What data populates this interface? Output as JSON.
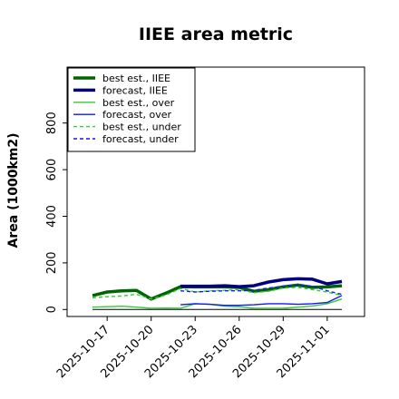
{
  "chart_data": {
    "type": "line",
    "title": "IIEE area metric",
    "xlabel": "",
    "ylabel": "Area (1000km2)",
    "x_ticks": [
      "2025-10-17",
      "2025-10-20",
      "2025-10-23",
      "2025-10-26",
      "2025-10-29",
      "2025-11-01"
    ],
    "x_tick_colors": [
      "#000000",
      "#000000",
      "#228b22",
      "#000000",
      "#000000",
      "#000000"
    ],
    "x_range": [
      "2025-10-16",
      "2025-11-02"
    ],
    "y_ticks": [
      "0",
      "200",
      "400",
      "600",
      "800"
    ],
    "ylim": [
      -30,
      1040
    ],
    "grid": false,
    "legend_position": "upper-left",
    "series": [
      {
        "name": "best est., IIEE",
        "color": "#006400",
        "style": "solid",
        "width": "thick",
        "points": [
          [
            "2025-10-16",
            60
          ],
          [
            "2025-10-17",
            75
          ],
          [
            "2025-10-18",
            80
          ],
          [
            "2025-10-19",
            82
          ],
          [
            "2025-10-20",
            45
          ],
          [
            "2025-10-21",
            70
          ],
          [
            "2025-10-22",
            98
          ],
          [
            "2025-10-23",
            97
          ],
          [
            "2025-10-24",
            97
          ],
          [
            "2025-10-25",
            97
          ],
          [
            "2025-10-26",
            95
          ],
          [
            "2025-10-27",
            78
          ],
          [
            "2025-10-28",
            85
          ],
          [
            "2025-10-29",
            97
          ],
          [
            "2025-10-30",
            105
          ],
          [
            "2025-10-31",
            95
          ],
          [
            "2025-11-01",
            97
          ],
          [
            "2025-11-02",
            102
          ]
        ]
      },
      {
        "name": "forecast, IIEE",
        "color": "#000080",
        "style": "solid",
        "width": "thick",
        "points": [
          [
            "2025-10-22",
            100
          ],
          [
            "2025-10-23",
            100
          ],
          [
            "2025-10-24",
            100
          ],
          [
            "2025-10-25",
            102
          ],
          [
            "2025-10-26",
            98
          ],
          [
            "2025-10-27",
            102
          ],
          [
            "2025-10-28",
            118
          ],
          [
            "2025-10-29",
            128
          ],
          [
            "2025-10-30",
            132
          ],
          [
            "2025-10-31",
            130
          ],
          [
            "2025-11-01",
            110
          ],
          [
            "2025-11-02",
            120
          ]
        ]
      },
      {
        "name": "best est., over",
        "color": "#32cd32",
        "style": "solid",
        "width": "thin",
        "points": [
          [
            "2025-10-16",
            10
          ],
          [
            "2025-10-17",
            12
          ],
          [
            "2025-10-18",
            14
          ],
          [
            "2025-10-19",
            10
          ],
          [
            "2025-10-20",
            5
          ],
          [
            "2025-10-21",
            6
          ],
          [
            "2025-10-22",
            5
          ],
          [
            "2025-10-23",
            25
          ],
          [
            "2025-10-24",
            22
          ],
          [
            "2025-10-25",
            14
          ],
          [
            "2025-10-26",
            12
          ],
          [
            "2025-10-27",
            5
          ],
          [
            "2025-10-28",
            5
          ],
          [
            "2025-10-29",
            5
          ],
          [
            "2025-10-30",
            10
          ],
          [
            "2025-10-31",
            15
          ],
          [
            "2025-11-01",
            25
          ],
          [
            "2025-11-02",
            45
          ]
        ]
      },
      {
        "name": "forecast, over",
        "color": "#1515ff",
        "style": "solid",
        "width": "thin",
        "points": [
          [
            "2025-10-22",
            20
          ],
          [
            "2025-10-23",
            25
          ],
          [
            "2025-10-24",
            22
          ],
          [
            "2025-10-25",
            18
          ],
          [
            "2025-10-26",
            18
          ],
          [
            "2025-10-27",
            20
          ],
          [
            "2025-10-28",
            25
          ],
          [
            "2025-10-29",
            25
          ],
          [
            "2025-10-30",
            22
          ],
          [
            "2025-10-31",
            25
          ],
          [
            "2025-11-01",
            30
          ],
          [
            "2025-11-02",
            60
          ]
        ]
      },
      {
        "name": "best est., under",
        "color": "#32cd32",
        "style": "dashed",
        "width": "thin",
        "points": [
          [
            "2025-10-16",
            50
          ],
          [
            "2025-10-17",
            55
          ],
          [
            "2025-10-18",
            58
          ],
          [
            "2025-10-19",
            65
          ],
          [
            "2025-10-20",
            45
          ],
          [
            "2025-10-21",
            62
          ],
          [
            "2025-10-22",
            90
          ],
          [
            "2025-10-23",
            75
          ],
          [
            "2025-10-24",
            80
          ],
          [
            "2025-10-25",
            82
          ],
          [
            "2025-10-26",
            85
          ],
          [
            "2025-10-27",
            72
          ],
          [
            "2025-10-28",
            78
          ],
          [
            "2025-10-29",
            92
          ],
          [
            "2025-10-30",
            95
          ],
          [
            "2025-10-31",
            85
          ],
          [
            "2025-11-01",
            75
          ],
          [
            "2025-11-02",
            60
          ]
        ]
      },
      {
        "name": "forecast, under",
        "color": "#1515ff",
        "style": "dashed",
        "width": "thin",
        "points": [
          [
            "2025-10-22",
            80
          ],
          [
            "2025-10-23",
            75
          ],
          [
            "2025-10-24",
            78
          ],
          [
            "2025-10-25",
            80
          ],
          [
            "2025-10-26",
            80
          ],
          [
            "2025-10-27",
            82
          ],
          [
            "2025-10-28",
            92
          ],
          [
            "2025-10-29",
            100
          ],
          [
            "2025-10-30",
            105
          ],
          [
            "2025-10-31",
            100
          ],
          [
            "2025-11-01",
            80
          ],
          [
            "2025-11-02",
            65
          ]
        ]
      }
    ]
  }
}
